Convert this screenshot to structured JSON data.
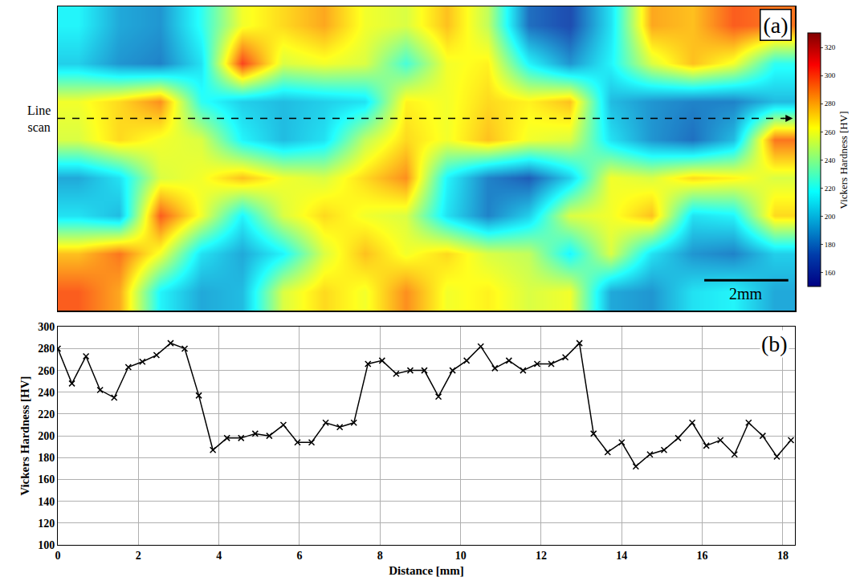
{
  "chart_data": [
    {
      "type": "heatmap",
      "label": "(a)",
      "annotations": {
        "line_scan": "Line scan",
        "scale_bar": "2mm"
      },
      "cells": [
        [
          215,
          195,
          190,
          220,
          260,
          270,
          280,
          260,
          255,
          275,
          250,
          180,
          170,
          210,
          280,
          275,
          295,
          290
        ],
        [
          205,
          190,
          185,
          210,
          300,
          255,
          260,
          255,
          225,
          260,
          265,
          215,
          190,
          215,
          255,
          275,
          260,
          220
        ],
        [
          260,
          270,
          285,
          220,
          205,
          200,
          205,
          210,
          265,
          260,
          270,
          265,
          275,
          200,
          190,
          185,
          185,
          200
        ],
        [
          255,
          270,
          260,
          255,
          215,
          200,
          210,
          250,
          270,
          260,
          275,
          260,
          255,
          210,
          190,
          180,
          200,
          290
        ],
        [
          195,
          210,
          255,
          260,
          275,
          260,
          255,
          270,
          285,
          215,
          185,
          175,
          205,
          260,
          255,
          270,
          265,
          255
        ],
        [
          210,
          200,
          295,
          260,
          215,
          255,
          270,
          260,
          255,
          210,
          185,
          205,
          255,
          260,
          275,
          210,
          215,
          270
        ],
        [
          275,
          290,
          260,
          210,
          195,
          215,
          255,
          275,
          260,
          270,
          255,
          250,
          215,
          255,
          210,
          190,
          185,
          205
        ],
        [
          295,
          280,
          215,
          195,
          200,
          255,
          270,
          260,
          285,
          260,
          265,
          255,
          260,
          195,
          190,
          210,
          215,
          195
        ]
      ],
      "zlim": [
        150,
        330
      ],
      "zticks": [
        160,
        180,
        200,
        220,
        240,
        260,
        280,
        300,
        320
      ],
      "colorbar_title": "Vickers Hardness [HV]",
      "tick_labels": false
    },
    {
      "type": "line",
      "label": "(b)",
      "x": [
        0,
        0.35,
        0.7,
        1.05,
        1.4,
        1.75,
        2.1,
        2.45,
        2.8,
        3.15,
        3.5,
        3.85,
        4.2,
        4.55,
        4.9,
        5.25,
        5.6,
        5.95,
        6.3,
        6.65,
        7.0,
        7.35,
        7.7,
        8.05,
        8.4,
        8.75,
        9.1,
        9.45,
        9.8,
        10.15,
        10.5,
        10.85,
        11.2,
        11.55,
        11.9,
        12.25,
        12.6,
        12.95,
        13.3,
        13.65,
        14.0,
        14.35,
        14.7,
        15.05,
        15.4,
        15.75,
        16.1,
        16.45,
        16.8,
        17.15,
        17.5,
        17.85,
        18.2
      ],
      "values": [
        280,
        248,
        273,
        242,
        235,
        263,
        268,
        274,
        285,
        280,
        237,
        187,
        198,
        198,
        202,
        200,
        210,
        194,
        194,
        212,
        208,
        212,
        266,
        269,
        257,
        260,
        260,
        236,
        260,
        269,
        282,
        262,
        269,
        260,
        266,
        266,
        272,
        285,
        202,
        185,
        194,
        172,
        183,
        187,
        198,
        212,
        191,
        196,
        183,
        212,
        200,
        181,
        196
      ],
      "color": "#000000",
      "marker": "x",
      "x_label": "Distance [mm]",
      "y_label": "Vickers Hardness [HV]",
      "xlim": [
        0,
        18.3
      ],
      "xticks": [
        0,
        2,
        4,
        6,
        8,
        10,
        12,
        14,
        16,
        18
      ],
      "ylim": [
        100,
        300
      ],
      "yticks": [
        100,
        120,
        140,
        160,
        180,
        200,
        220,
        240,
        260,
        280,
        300
      ],
      "grid": true
    }
  ]
}
